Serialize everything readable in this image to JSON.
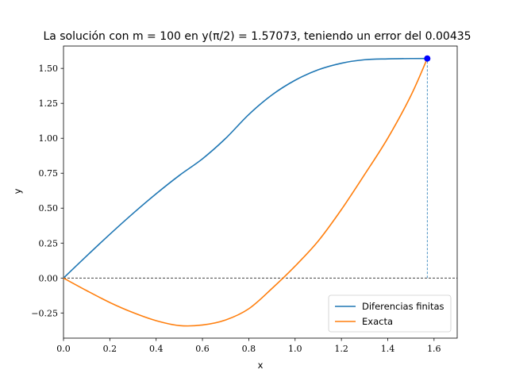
{
  "chart_data": {
    "type": "line",
    "title": "La solución con m = 100 en y(π/2) = 1.57073, teniendo un error del 0.00435",
    "xlabel": "x",
    "ylabel": "y",
    "xlim": [
      0.0,
      1.7
    ],
    "ylim": [
      -0.43,
      1.66
    ],
    "xticks": [
      0.0,
      0.2,
      0.4,
      0.6,
      0.8,
      1.0,
      1.2,
      1.4,
      1.6
    ],
    "xtick_labels": [
      "0.0",
      "0.2",
      "0.4",
      "0.6",
      "0.8",
      "1.0",
      "1.2",
      "1.4",
      "1.6"
    ],
    "yticks": [
      -0.25,
      0.0,
      0.25,
      0.5,
      0.75,
      1.0,
      1.25,
      1.5
    ],
    "ytick_labels": [
      "−0.25",
      "0.00",
      "0.25",
      "0.50",
      "0.75",
      "1.00",
      "1.25",
      "1.50"
    ],
    "grid": false,
    "legend_position": "lower right",
    "series": [
      {
        "name": "Diferencias finitas",
        "color": "#1f77b4",
        "x": [
          0.0,
          0.1,
          0.2,
          0.3,
          0.4,
          0.5,
          0.6,
          0.7,
          0.8,
          0.9,
          1.0,
          1.1,
          1.2,
          1.3,
          1.4,
          1.5,
          1.5708
        ],
        "y": [
          0.0,
          0.158,
          0.313,
          0.462,
          0.603,
          0.734,
          0.853,
          0.999,
          1.17,
          1.31,
          1.415,
          1.49,
          1.537,
          1.562,
          1.568,
          1.5705,
          1.5707
        ]
      },
      {
        "name": "Exacta",
        "color": "#ff7f0e",
        "x": [
          0.0,
          0.1,
          0.2,
          0.3,
          0.4,
          0.5,
          0.6,
          0.7,
          0.8,
          0.9,
          1.0,
          1.1,
          1.2,
          1.3,
          1.4,
          1.5,
          1.5708
        ],
        "y": [
          0.0,
          -0.09,
          -0.175,
          -0.247,
          -0.305,
          -0.34,
          -0.336,
          -0.3,
          -0.22,
          -0.075,
          0.085,
          0.265,
          0.49,
          0.74,
          1.0,
          1.305,
          1.5707
        ]
      }
    ],
    "annotations": {
      "point": {
        "x": 1.5708,
        "y": 1.5707,
        "color": "#0000ff"
      },
      "hline_y": 0.0,
      "vline_x": 1.5708,
      "vline_color": "#1f77b4"
    }
  }
}
